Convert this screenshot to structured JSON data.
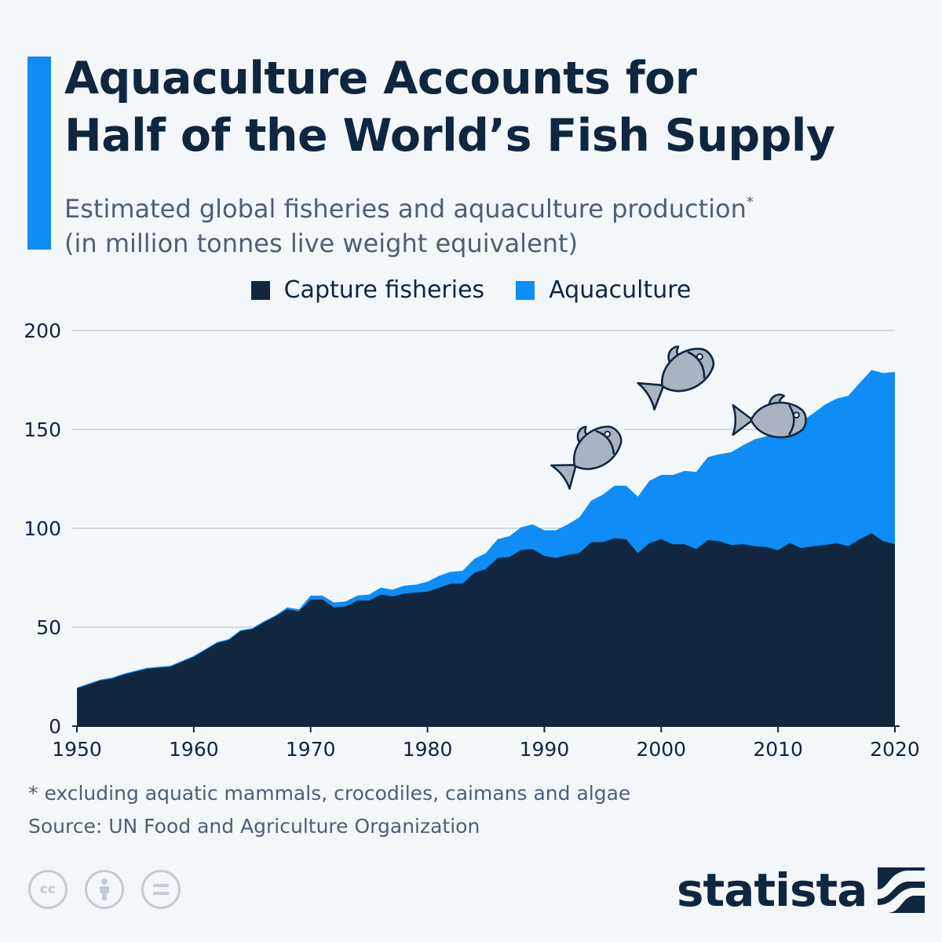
{
  "title_lines": [
    "Aquaculture Accounts for",
    "Half of the World’s Fish Supply"
  ],
  "subtitle_line1": "Estimated global fisheries and aquaculture production",
  "subtitle_marker": "*",
  "subtitle_line2": "(in million tonnes live weight equivalent)",
  "legend": [
    {
      "label": "Capture fisheries",
      "color": "#112740"
    },
    {
      "label": "Aquaculture",
      "color": "#0d8df5"
    }
  ],
  "footnote": "* excluding aquatic mammals, crocodiles, caimans and algae",
  "source": "Source: UN Food and Agriculture Organization",
  "brand": "statista",
  "license_icons": [
    "cc-icon",
    "attribution-icon",
    "no-derivatives-icon"
  ],
  "decoration_icons": [
    "fish-icon",
    "fish-icon",
    "fish-icon"
  ],
  "chart_data": {
    "type": "area",
    "stacked": true,
    "x": [
      1950,
      1951,
      1952,
      1953,
      1954,
      1955,
      1956,
      1957,
      1958,
      1959,
      1960,
      1961,
      1962,
      1963,
      1964,
      1965,
      1966,
      1967,
      1968,
      1969,
      1970,
      1971,
      1972,
      1973,
      1974,
      1975,
      1976,
      1977,
      1978,
      1979,
      1980,
      1981,
      1982,
      1983,
      1984,
      1985,
      1986,
      1987,
      1988,
      1989,
      1990,
      1991,
      1992,
      1993,
      1994,
      1995,
      1996,
      1997,
      1998,
      1999,
      2000,
      2001,
      2002,
      2003,
      2004,
      2005,
      2006,
      2007,
      2008,
      2009,
      2010,
      2011,
      2012,
      2013,
      2014,
      2015,
      2016,
      2017,
      2018,
      2019,
      2020
    ],
    "series": [
      {
        "name": "Capture fisheries",
        "color": "#112740",
        "values": [
          19,
          21,
          23,
          24,
          26,
          27.5,
          29,
          29.5,
          30,
          32.5,
          35,
          38.5,
          42,
          43.5,
          48,
          49,
          52.5,
          55.5,
          59,
          58,
          64,
          64,
          60,
          60.5,
          63.5,
          63.5,
          66.5,
          65.5,
          67,
          67.5,
          68,
          70,
          72,
          72,
          77.5,
          79.5,
          85,
          85.5,
          89,
          89.5,
          86,
          85,
          86.5,
          87.5,
          93,
          93,
          95,
          94.5,
          87.5,
          92.5,
          94.5,
          92,
          92,
          89.5,
          94,
          93.5,
          91.5,
          92,
          91,
          90.5,
          89,
          92.5,
          90,
          91,
          91.5,
          92.5,
          91,
          94.5,
          97.5,
          93.5,
          92
        ]
      },
      {
        "name": "Aquaculture",
        "color": "#0d8df5",
        "values": [
          0.5,
          0.5,
          0.5,
          0.5,
          0.5,
          0.5,
          0.5,
          0.5,
          0.5,
          0.5,
          0.5,
          0.5,
          0.5,
          0.5,
          0.5,
          0.5,
          0.5,
          0.5,
          1,
          1,
          2,
          2,
          2.5,
          2.5,
          2.5,
          3,
          3.5,
          3.5,
          4,
          4,
          5,
          6,
          6,
          6.5,
          7,
          8,
          9.5,
          10.5,
          11.5,
          12.5,
          13,
          14,
          15.5,
          18,
          21,
          24,
          26.5,
          27,
          28.5,
          31.5,
          32.5,
          35,
          37,
          39,
          42,
          44,
          47,
          50,
          54,
          56,
          58.5,
          61,
          64,
          67,
          71,
          73,
          76,
          79,
          82.5,
          85,
          87
        ]
      }
    ],
    "xlim": [
      1950,
      2020
    ],
    "ylim": [
      0,
      200
    ],
    "xticks": [
      1950,
      1960,
      1970,
      1980,
      1990,
      2000,
      2010,
      2020
    ],
    "yticks": [
      0,
      50,
      100,
      150,
      200
    ],
    "grid": true,
    "legend_position": "top-center"
  }
}
